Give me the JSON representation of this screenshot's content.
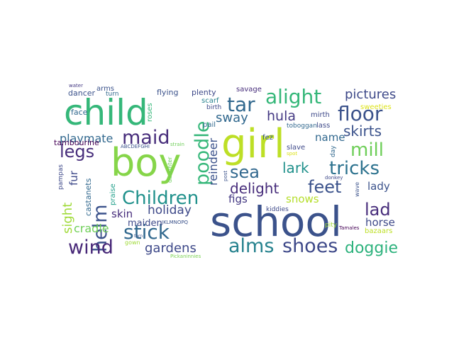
{
  "words": [
    {
      "text": "school",
      "color": "#3b528b"
    },
    {
      "text": "girl",
      "color": "#bddf26"
    },
    {
      "text": "child",
      "color": "#35b779"
    },
    {
      "text": "boy",
      "color": "#86d549"
    },
    {
      "text": "alight",
      "color": "#35b779"
    },
    {
      "text": "tar",
      "color": "#31688e"
    },
    {
      "text": "floor",
      "color": "#3b528b"
    },
    {
      "text": "maid",
      "color": "#472d7b"
    },
    {
      "text": "Children",
      "color": "#21918c"
    },
    {
      "text": "poodle",
      "color": "#35b779"
    },
    {
      "text": "mill",
      "color": "#6ece58"
    },
    {
      "text": "tricks",
      "color": "#2c728e"
    },
    {
      "text": "feet",
      "color": "#3b528b"
    },
    {
      "text": "sea",
      "color": "#31688e"
    },
    {
      "text": "legs",
      "color": "#472d7b"
    },
    {
      "text": "helm",
      "color": "#3b528b"
    },
    {
      "text": "stick",
      "color": "#31688e"
    },
    {
      "text": "lad",
      "color": "#472d7b"
    },
    {
      "text": "wind",
      "color": "#482878"
    },
    {
      "text": "alms",
      "color": "#26828e"
    },
    {
      "text": "shoes",
      "color": "#3e4989"
    },
    {
      "text": "doggie",
      "color": "#2db27d"
    },
    {
      "text": "pictures",
      "color": "#3e4989"
    },
    {
      "text": "skirts",
      "color": "#3b528b"
    },
    {
      "text": "hula",
      "color": "#443983"
    },
    {
      "text": "lark",
      "color": "#21918c"
    },
    {
      "text": "delight",
      "color": "#472d7b"
    },
    {
      "text": "sway",
      "color": "#31688e"
    },
    {
      "text": "reindeer",
      "color": "#3b528b"
    },
    {
      "text": "gardens",
      "color": "#3e4989"
    },
    {
      "text": "holiday",
      "color": "#3e4989"
    },
    {
      "text": "sight",
      "color": "#a0da39"
    },
    {
      "text": "playmate",
      "color": "#31688e"
    },
    {
      "text": "cradle",
      "color": "#6ece58"
    },
    {
      "text": "skin",
      "color": "#472d7b"
    },
    {
      "text": "fur",
      "color": "#3e4989"
    },
    {
      "text": "name",
      "color": "#31688e"
    },
    {
      "text": "lady",
      "color": "#3b528b"
    },
    {
      "text": "horse",
      "color": "#3e4989"
    },
    {
      "text": "snows",
      "color": "#b5de2b"
    },
    {
      "text": "figs",
      "color": "#443983"
    },
    {
      "text": "maiden",
      "color": "#3e4989"
    },
    {
      "text": "tambourine",
      "color": "#440154"
    },
    {
      "text": "castanets",
      "color": "#31688e"
    },
    {
      "text": "pampas",
      "color": "#3e4989"
    },
    {
      "text": "praise",
      "color": "#1f9e89"
    },
    {
      "text": "face",
      "color": "#31688e"
    },
    {
      "text": "roses",
      "color": "#35b779"
    },
    {
      "text": "dancer",
      "color": "#3b528b"
    },
    {
      "text": "arms",
      "color": "#3b528b"
    },
    {
      "text": "turn",
      "color": "#31688e"
    },
    {
      "text": "water",
      "color": "#443983"
    },
    {
      "text": "flying",
      "color": "#3b528b"
    },
    {
      "text": "plenty",
      "color": "#3e4989"
    },
    {
      "text": "savage",
      "color": "#472d7b"
    },
    {
      "text": "scarf",
      "color": "#26828e"
    },
    {
      "text": "birth",
      "color": "#3e4989"
    },
    {
      "text": "pail",
      "color": "#31688e"
    },
    {
      "text": "sweeties",
      "color": "#dde318"
    },
    {
      "text": "mirth",
      "color": "#3e4989"
    },
    {
      "text": "toboggan",
      "color": "#31688e"
    },
    {
      "text": "lass",
      "color": "#3e4989"
    },
    {
      "text": "fez",
      "color": "#3b528b"
    },
    {
      "text": "slave",
      "color": "#3e4989"
    },
    {
      "text": "spot",
      "color": "#dde318"
    },
    {
      "text": "day",
      "color": "#31688e"
    },
    {
      "text": "ABCDEFGHI",
      "color": "#3b528b"
    },
    {
      "text": "strain",
      "color": "#6ece58"
    },
    {
      "text": "daughter",
      "color": "#6ece58"
    },
    {
      "text": "post",
      "color": "#3b528b"
    },
    {
      "text": "kiddies",
      "color": "#3e4989"
    },
    {
      "text": "donkey",
      "color": "#3e4989"
    },
    {
      "text": "wave",
      "color": "#3b528b"
    },
    {
      "text": "pity",
      "color": "#a0da39"
    },
    {
      "text": "Tamales",
      "color": "#440154"
    },
    {
      "text": "bazaars",
      "color": "#bddf26"
    },
    {
      "text": "JKLMNOPQ",
      "color": "#3b528b"
    },
    {
      "text": "gown",
      "color": "#a0da39"
    },
    {
      "text": "torn",
      "color": "#3b528b"
    },
    {
      "text": "Pickaninnies",
      "color": "#7ad151"
    }
  ]
}
